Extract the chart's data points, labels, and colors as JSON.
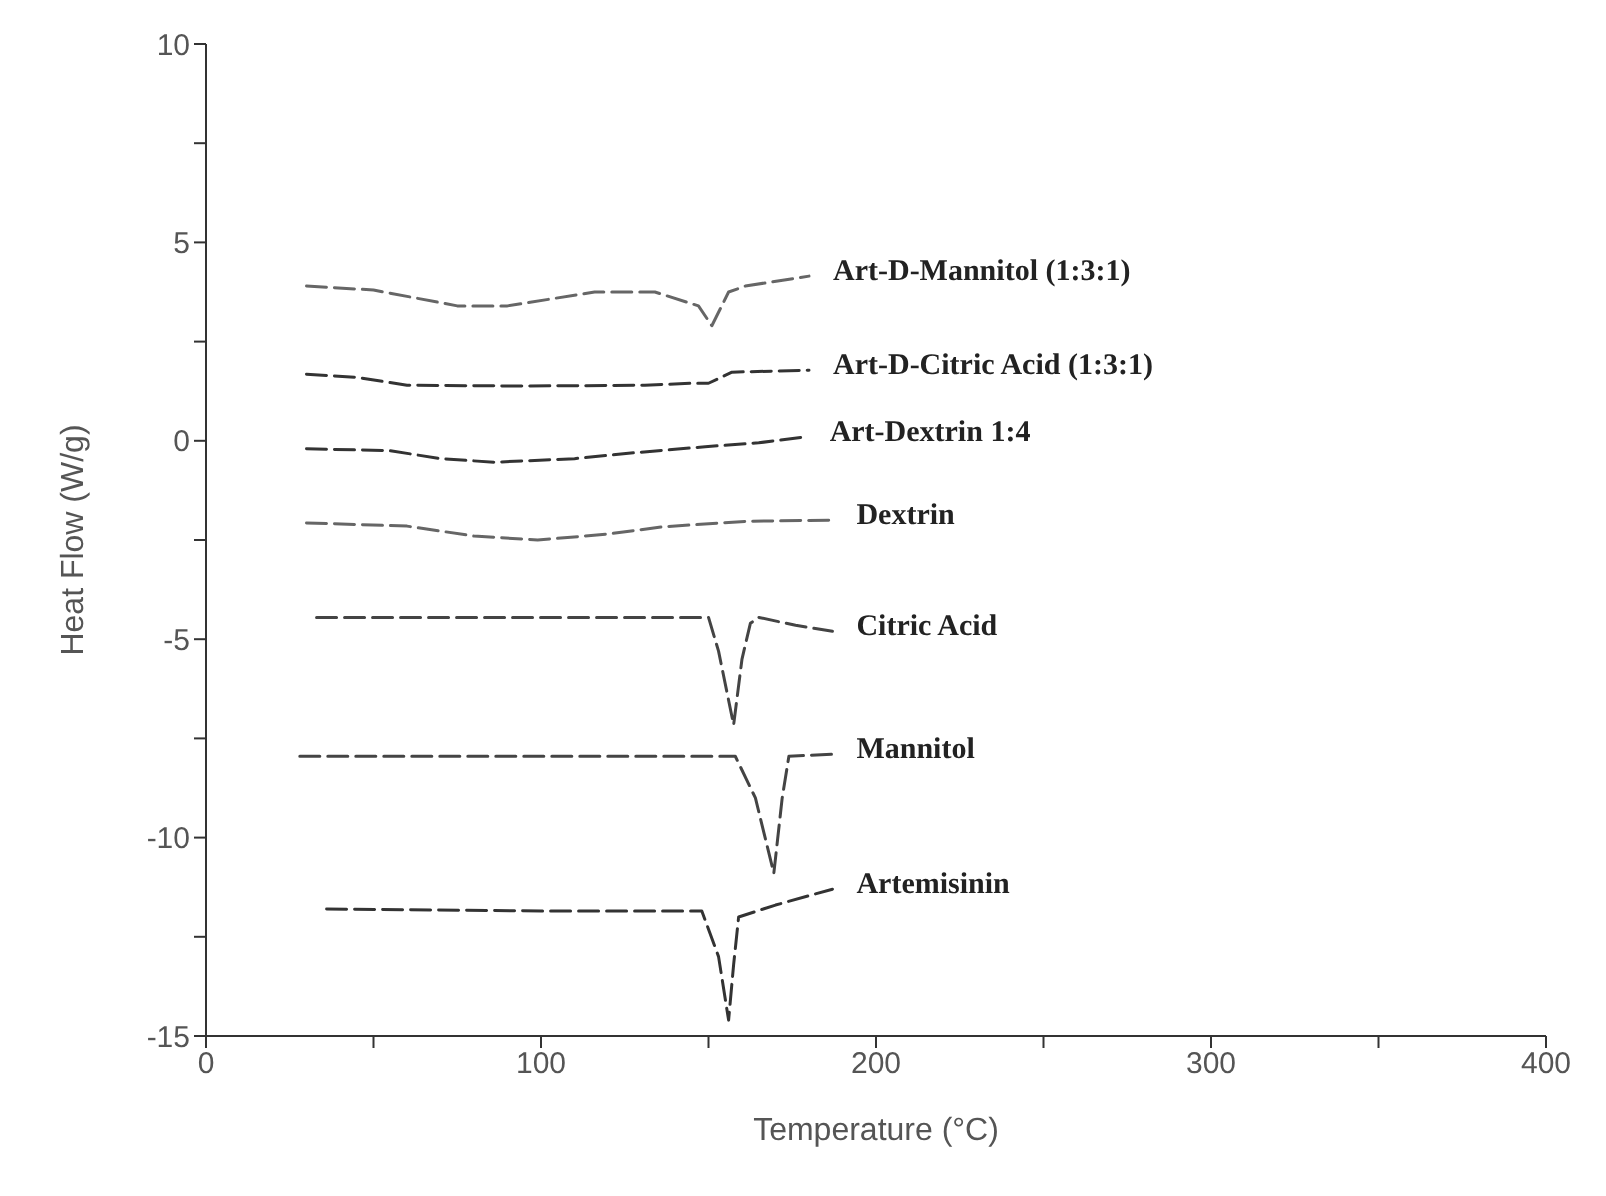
{
  "chart_data": {
    "type": "line",
    "xlabel": "Temperature (°C)",
    "ylabel": "Heat Flow (W/g)",
    "xlim": [
      0,
      400
    ],
    "ylim": [
      -15,
      10
    ],
    "xticks": [
      0,
      {
        "value": 50,
        "label": null
      },
      100,
      {
        "value": 150,
        "label": null
      },
      200,
      {
        "value": 250,
        "label": null
      },
      300,
      {
        "value": 350,
        "label": null
      },
      400
    ],
    "yticks": [
      -15,
      {
        "value": -12.5,
        "label": null
      },
      -10,
      {
        "value": -7.5,
        "label": null
      },
      -5,
      {
        "value": -2.5,
        "label": null
      },
      0,
      {
        "value": 2.5,
        "label": null
      },
      5,
      {
        "value": 7.5,
        "label": null
      },
      10
    ],
    "grid": false,
    "legend": false,
    "marker": "none",
    "line_style": "dashed",
    "series": [
      {
        "name": "Art-D-Mannitol (1:3:1)",
        "color": "#666666",
        "x": [
          30,
          50,
          75,
          90,
          116,
          134,
          147,
          151,
          156,
          161,
          180
        ],
        "values": [
          3.9,
          3.8,
          3.4,
          3.4,
          3.75,
          3.75,
          3.4,
          2.9,
          3.75,
          3.9,
          4.15
        ]
      },
      {
        "name": "Art-D-Citric Acid (1:3:1)",
        "color": "#333333",
        "x": [
          30,
          45,
          60,
          95,
          131,
          145,
          150,
          157,
          180
        ],
        "values": [
          1.68,
          1.6,
          1.4,
          1.38,
          1.4,
          1.45,
          1.45,
          1.73,
          1.78
        ]
      },
      {
        "name": "Art-Dextrin 1:4",
        "color": "#333333",
        "x": [
          30,
          55,
          70,
          86,
          110,
          128,
          149,
          165,
          179
        ],
        "values": [
          -0.2,
          -0.25,
          -0.45,
          -0.54,
          -0.45,
          -0.3,
          -0.15,
          -0.05,
          0.1
        ]
      },
      {
        "name": "Dextrin",
        "color": "#666666",
        "x": [
          30,
          60,
          80,
          99,
          120,
          136,
          161,
          187
        ],
        "values": [
          -2.07,
          -2.15,
          -2.4,
          -2.5,
          -2.35,
          -2.17,
          -2.03,
          -2.0
        ]
      },
      {
        "name": "Citric Acid",
        "color": "#444444",
        "x": [
          33,
          100,
          150,
          153,
          157.5,
          160,
          162.5,
          165,
          176,
          187
        ],
        "values": [
          -4.45,
          -4.45,
          -4.45,
          -5.3,
          -7.16,
          -5.5,
          -4.6,
          -4.45,
          -4.65,
          -4.8
        ]
      },
      {
        "name": "Mannitol",
        "color": "#444444",
        "x": [
          28,
          100,
          158,
          164,
          169.5,
          172,
          174,
          187
        ],
        "values": [
          -7.95,
          -7.95,
          -7.95,
          -9,
          -10.9,
          -9,
          -7.95,
          -7.9
        ]
      },
      {
        "name": "Artemisinin",
        "color": "#333333",
        "x": [
          36,
          100,
          148,
          153,
          156,
          157.5,
          159,
          170,
          187
        ],
        "values": [
          -11.8,
          -11.85,
          -11.85,
          -13,
          -14.6,
          -13.2,
          -12,
          -11.7,
          -11.3
        ]
      }
    ]
  }
}
